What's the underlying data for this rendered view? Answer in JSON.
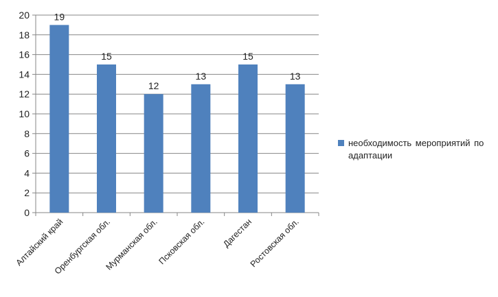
{
  "chart_data": {
    "type": "bar",
    "title": "",
    "xlabel": "",
    "ylabel": "",
    "categories": [
      "Алтайский край",
      "Оренбургская обл.",
      "Мурманская обл.",
      "Псковская обл.",
      "Дагестан",
      "Ростовская обл."
    ],
    "series": [
      {
        "name": "необходимость мероприятий по адаптации",
        "values": [
          19,
          15,
          12,
          13,
          15,
          13
        ]
      }
    ],
    "ylim": [
      0,
      20
    ],
    "yticks": [
      0,
      2,
      4,
      6,
      8,
      10,
      12,
      14,
      16,
      18,
      20
    ],
    "grid": true,
    "legend": "right",
    "data_labels": true,
    "colors": {
      "bar": "#4F81BD",
      "grid": "#868686",
      "axis": "#868686"
    }
  }
}
